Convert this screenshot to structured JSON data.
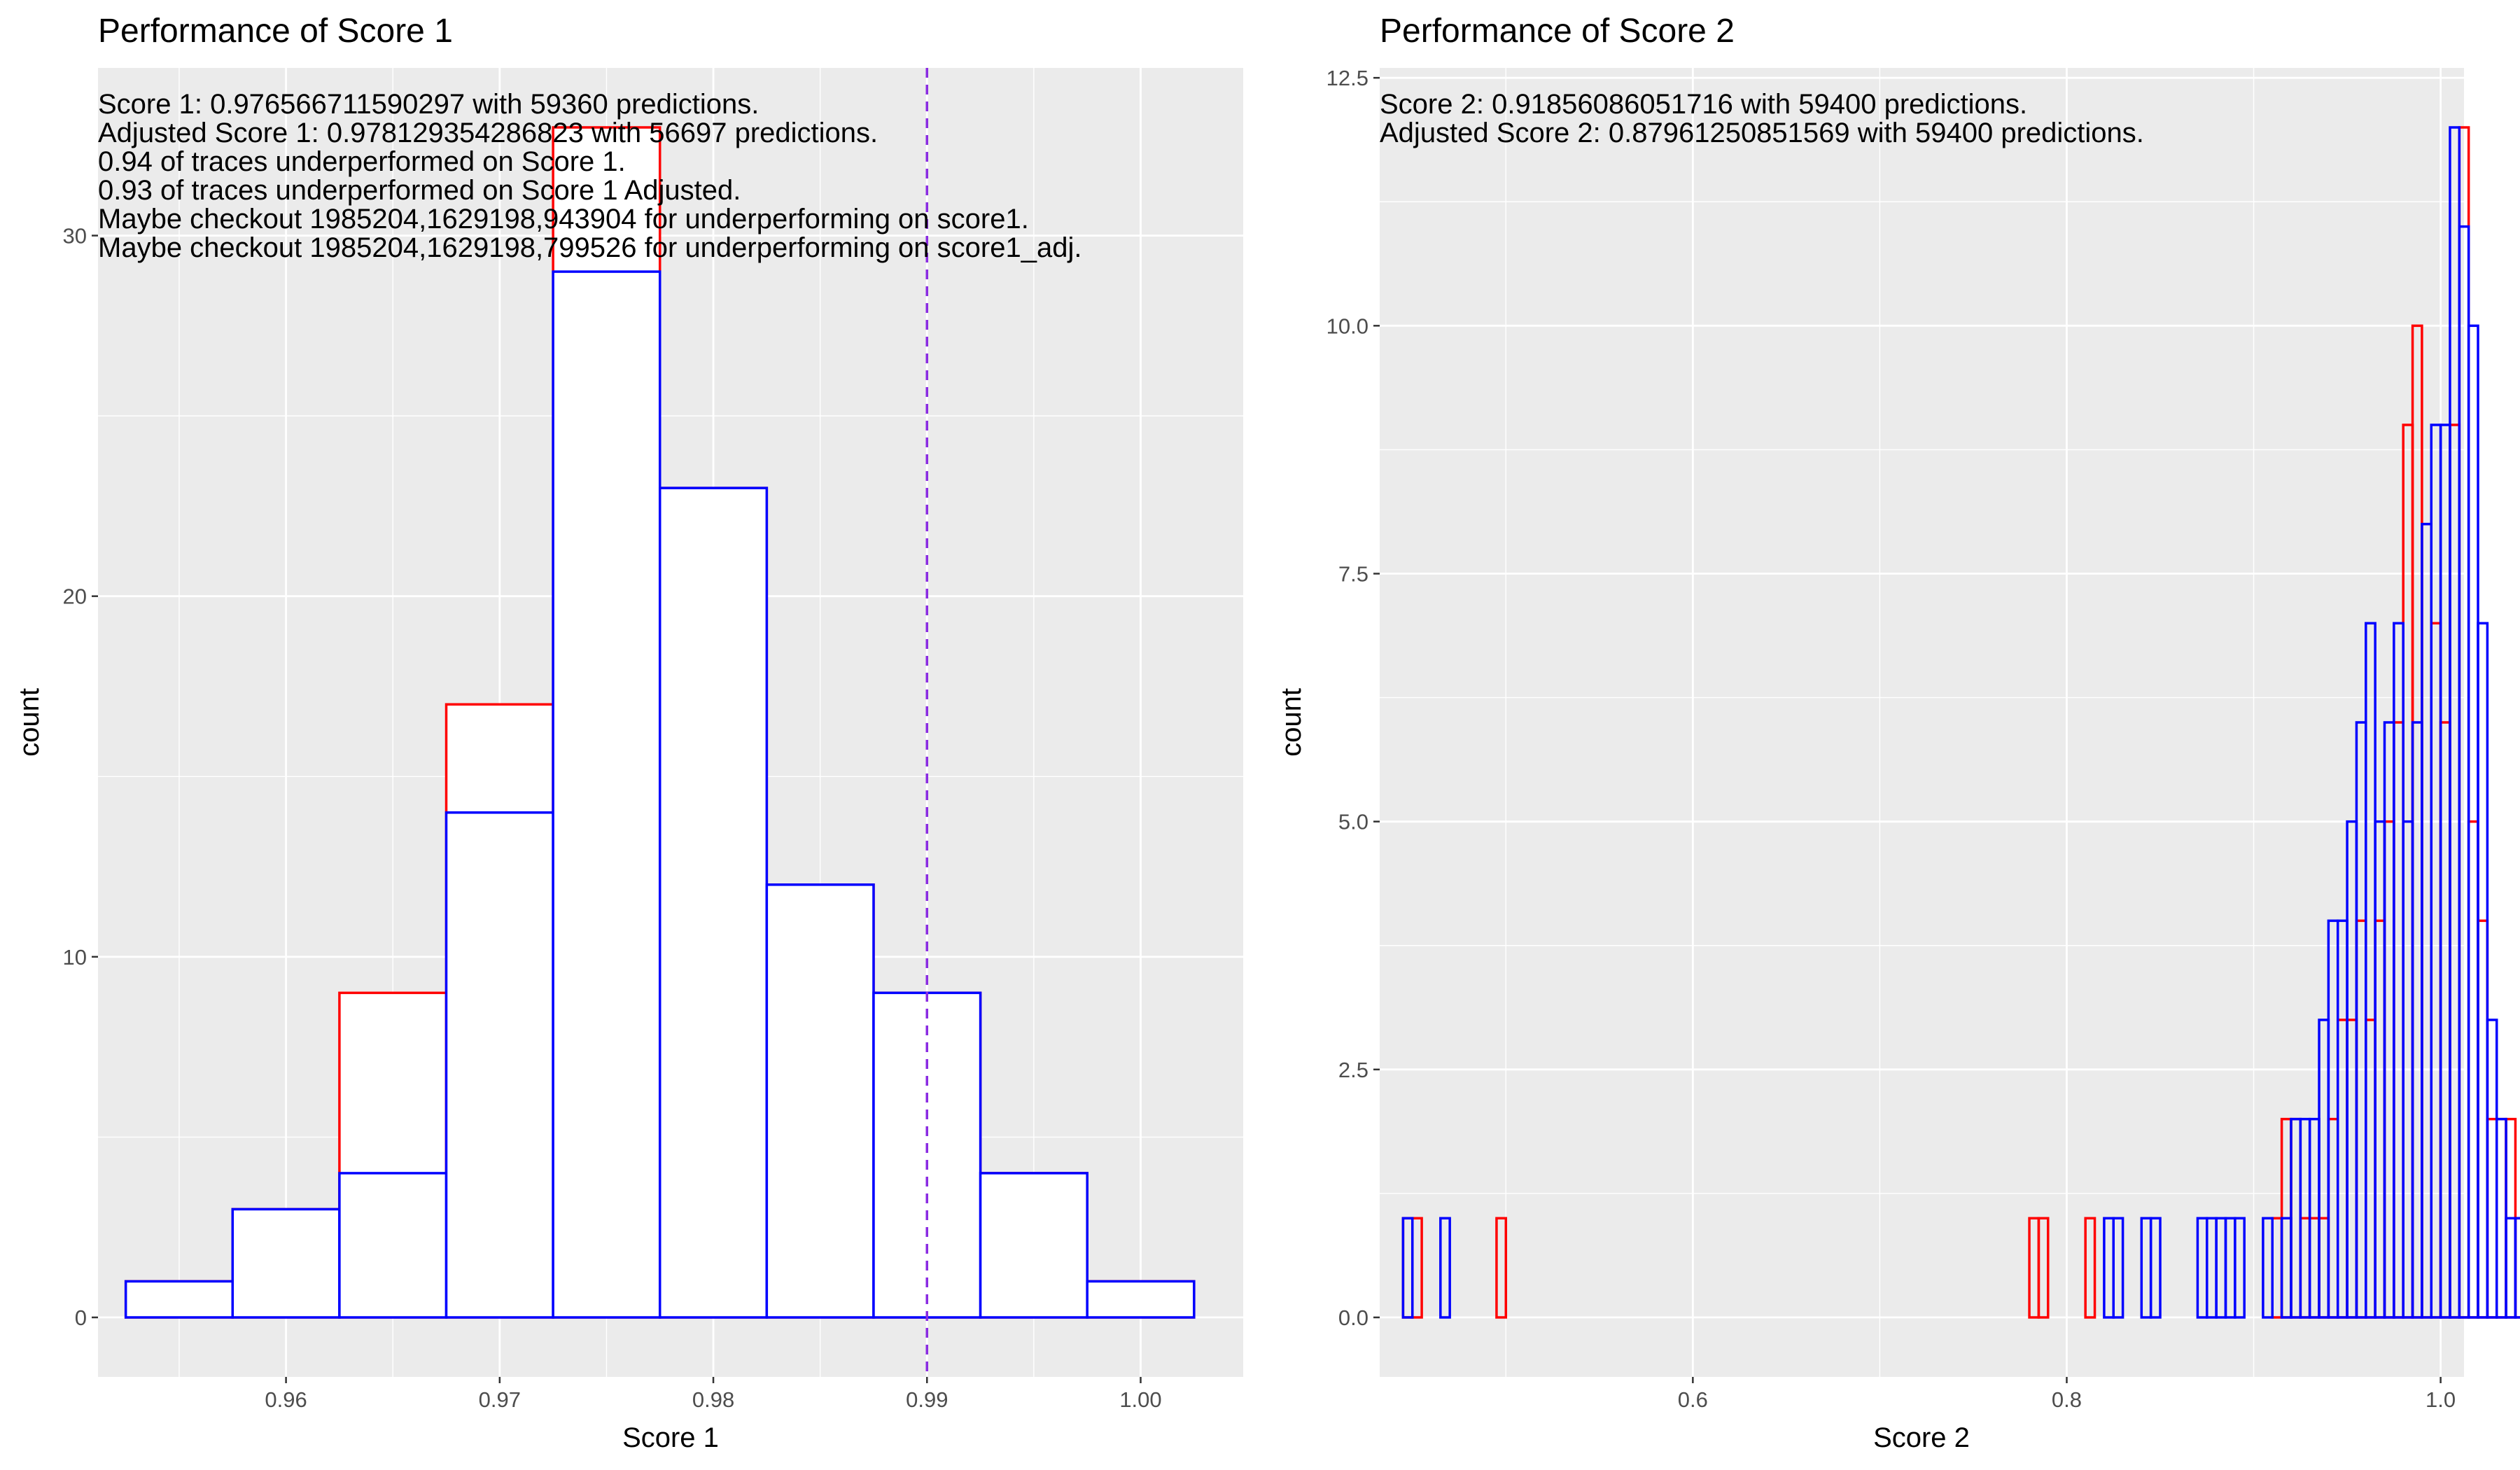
{
  "chart_data": [
    {
      "type": "histogram",
      "title": "Performance of Score 1",
      "xlabel": "Score 1",
      "ylabel": "count",
      "xlim": [
        0.9512,
        1.0048
      ],
      "ylim": [
        -1.65,
        34.65
      ],
      "x_ticks": [
        0.96,
        0.97,
        0.98,
        0.99,
        1.0
      ],
      "x_tick_labels": [
        "0.96",
        "0.97",
        "0.98",
        "0.99",
        "1.00"
      ],
      "y_ticks": [
        0,
        10,
        20,
        30
      ],
      "y_tick_labels": [
        "0",
        "10",
        "20",
        "30"
      ],
      "grid": true,
      "legend": "none",
      "annotations": [
        "Score 1: 0.976566711590297 with 59360 predictions.",
        "Adjusted Score 1: 0.978129354286823 with 56697 predictions.",
        "0.94 of traces underperformed on Score 1.",
        "0.93 of traces underperformed on Score 1 Adjusted.",
        "Maybe checkout 1985204,1629198,943904 for underperforming on score1.",
        "Maybe checkout 1985204,1629198,799526 for underperforming on score1_adj."
      ],
      "vline": {
        "x": 0.99,
        "style": "dashed",
        "color": "#8a2be2"
      },
      "series": [
        {
          "color": "#ff0000",
          "fill": "#ffffff",
          "bins": [
            {
              "x0": 0.9525,
              "x1": 0.9575,
              "count": 1
            },
            {
              "x0": 0.9575,
              "x1": 0.9625,
              "count": 3
            },
            {
              "x0": 0.9625,
              "x1": 0.9675,
              "count": 9
            },
            {
              "x0": 0.9675,
              "x1": 0.9725,
              "count": 17
            },
            {
              "x0": 0.9725,
              "x1": 0.9775,
              "count": 33
            },
            {
              "x0": 0.9775,
              "x1": 0.9825,
              "count": 23
            },
            {
              "x0": 0.9825,
              "x1": 0.9875,
              "count": 12
            },
            {
              "x0": 0.9875,
              "x1": 0.9925,
              "count": 9
            },
            {
              "x0": 0.9925,
              "x1": 0.9975,
              "count": 4
            },
            {
              "x0": 0.9975,
              "x1": 1.0025,
              "count": 1
            }
          ]
        },
        {
          "color": "#0000ff",
          "fill": "#ffffff",
          "bins": [
            {
              "x0": 0.9525,
              "x1": 0.9575,
              "count": 1
            },
            {
              "x0": 0.9575,
              "x1": 0.9625,
              "count": 3
            },
            {
              "x0": 0.9625,
              "x1": 0.9675,
              "count": 4
            },
            {
              "x0": 0.9675,
              "x1": 0.9725,
              "count": 14
            },
            {
              "x0": 0.9725,
              "x1": 0.9775,
              "count": 29
            },
            {
              "x0": 0.9775,
              "x1": 0.9825,
              "count": 23
            },
            {
              "x0": 0.9825,
              "x1": 0.9875,
              "count": 12
            },
            {
              "x0": 0.9875,
              "x1": 0.9925,
              "count": 9
            },
            {
              "x0": 0.9925,
              "x1": 0.9975,
              "count": 4
            },
            {
              "x0": 0.9975,
              "x1": 1.0025,
              "count": 1
            }
          ]
        }
      ]
    },
    {
      "type": "histogram",
      "title": "Performance of Score 2",
      "xlabel": "Score 2",
      "ylabel": "count",
      "xlim": [
        0.4325,
        1.0125
      ],
      "ylim": [
        -0.6,
        12.6
      ],
      "x_ticks": [
        0.6,
        0.8,
        1.0
      ],
      "x_tick_labels": [
        "0.6",
        "0.8",
        "1.0"
      ],
      "y_ticks": [
        0,
        2.5,
        5,
        7.5,
        10,
        12.5
      ],
      "y_tick_labels": [
        "0.0",
        "2.5",
        "5.0",
        "7.5",
        "10.0",
        "12.5"
      ],
      "grid": true,
      "legend": "none",
      "annotations": [
        "Score 2: 0.91856086051716 with 59400 predictions.",
        "Adjusted Score 2: 0.87961250851569 with 59400 predictions."
      ],
      "series": [
        {
          "color": "#ff0000",
          "bin_start": 0.445,
          "bin_width": 0.005,
          "counts": [
            1,
            1,
            0,
            0,
            0,
            0,
            0,
            0,
            0,
            0,
            1,
            0,
            0,
            0,
            0,
            0,
            0,
            0,
            0,
            0,
            0,
            0,
            0,
            0,
            0,
            0,
            0,
            0,
            0,
            0,
            0,
            0,
            0,
            0,
            0,
            0,
            0,
            0,
            0,
            0,
            0,
            0,
            0,
            0,
            0,
            0,
            0,
            0,
            0,
            0,
            0,
            0,
            0,
            0,
            0,
            0,
            0,
            0,
            0,
            0,
            0,
            0,
            0,
            0,
            0,
            0,
            0,
            1,
            1,
            0,
            0,
            0,
            0,
            1,
            0,
            0,
            0,
            0,
            0,
            0,
            0,
            0,
            0,
            0,
            0,
            0,
            0,
            0,
            0,
            0,
            0,
            0,
            0,
            1,
            2,
            2,
            1,
            1,
            1,
            2,
            3,
            3,
            4,
            3,
            4,
            5,
            6,
            9,
            10,
            8,
            7,
            6,
            9,
            12,
            5,
            4,
            2,
            2,
            2,
            1,
            1
          ]
        },
        {
          "color": "#0000ff",
          "bin_start": 0.445,
          "bin_width": 0.005,
          "counts": [
            1,
            0,
            0,
            0,
            1,
            0,
            0,
            0,
            0,
            0,
            0,
            0,
            0,
            0,
            0,
            0,
            0,
            0,
            0,
            0,
            0,
            0,
            0,
            0,
            0,
            0,
            0,
            0,
            0,
            0,
            0,
            0,
            0,
            0,
            0,
            0,
            0,
            0,
            0,
            0,
            0,
            0,
            0,
            0,
            0,
            0,
            0,
            0,
            0,
            0,
            0,
            0,
            0,
            0,
            0,
            0,
            0,
            0,
            0,
            0,
            0,
            0,
            0,
            0,
            0,
            0,
            0,
            0,
            0,
            0,
            0,
            0,
            0,
            0,
            0,
            1,
            1,
            0,
            0,
            1,
            1,
            0,
            0,
            0,
            0,
            1,
            1,
            1,
            1,
            1,
            0,
            0,
            1,
            0,
            1,
            2,
            2,
            2,
            3,
            4,
            4,
            5,
            6,
            7,
            5,
            6,
            7,
            5,
            6,
            8,
            9,
            9,
            12,
            11,
            10,
            7,
            3,
            2,
            1,
            1
          ]
        }
      ]
    }
  ]
}
